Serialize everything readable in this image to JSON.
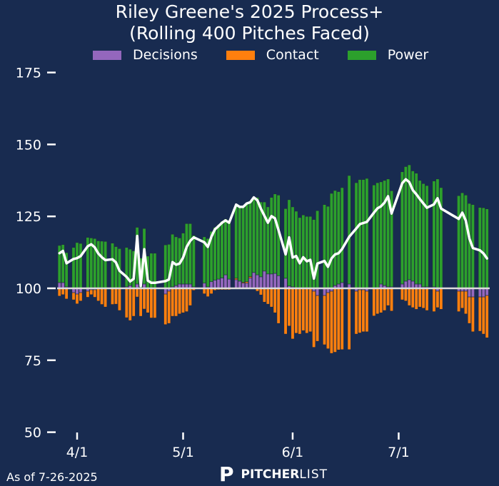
{
  "chart_data": {
    "type": "bar",
    "title": "Riley Greene's 2025 Process+",
    "subtitle": "(Rolling 400 Pitches Faced)",
    "xlabel": "",
    "ylabel": "",
    "ylim": [
      50,
      175
    ],
    "baseline": 100,
    "yticks": [
      "50",
      "75",
      "100",
      "125",
      "150",
      "175"
    ],
    "xticks": [
      "4/1",
      "5/1",
      "6/1",
      "7/1"
    ],
    "legend_position": "top-center",
    "legend": [
      "Decisions",
      "Contact",
      "Power"
    ],
    "colors": {
      "Decisions": "#9467bd",
      "Contact": "#ff7f0e",
      "Power": "#2ca02c",
      "line": "#ffffff",
      "baseline": "#dcdcdc",
      "background": "#182b50"
    },
    "line_series": "Process+ (100 + Decisions + Contact + Power)",
    "bars": [
      {
        "date": "3/27",
        "decisions": 2,
        "contact": -2.7,
        "power": 12.9
      },
      {
        "date": "3/28",
        "decisions": 2,
        "contact": -2.2,
        "power": 13.2
      },
      {
        "date": "3/29",
        "decisions": 0.5,
        "contact": -3.7,
        "power": 11.9
      },
      {
        "date": "3/31",
        "decisions": -1.5,
        "contact": -2.5,
        "power": 14.2
      },
      {
        "date": "4/1",
        "decisions": -2,
        "contact": -3.4,
        "power": 15.9
      },
      {
        "date": "4/2",
        "decisions": -1.5,
        "contact": -2.9,
        "power": 15.6
      },
      {
        "date": "4/4",
        "decisions": -1,
        "contact": -2.1,
        "power": 17.7
      },
      {
        "date": "4/5",
        "decisions": -0.5,
        "contact": -1.7,
        "power": 17.5
      },
      {
        "date": "4/6",
        "decisions": -0.5,
        "contact": -2.6,
        "power": 17.3
      },
      {
        "date": "4/7",
        "decisions": 0,
        "contact": -4.4,
        "power": 16.5
      },
      {
        "date": "4/8",
        "decisions": 0,
        "contact": -5.6,
        "power": 16.4
      },
      {
        "date": "4/9",
        "decisions": 0,
        "contact": -6.5,
        "power": 16.3
      },
      {
        "date": "4/11",
        "decisions": 0,
        "contact": -5.6,
        "power": 15.7
      },
      {
        "date": "4/12",
        "decisions": 0,
        "contact": -5.5,
        "power": 14.5
      },
      {
        "date": "4/13",
        "decisions": 0,
        "contact": -7.7,
        "power": 13.8
      },
      {
        "date": "4/15",
        "decisions": 0.5,
        "contact": -10.2,
        "power": 13.7
      },
      {
        "date": "4/16",
        "decisions": 1,
        "contact": -11.2,
        "power": 12.6
      },
      {
        "date": "4/17",
        "decisions": 0,
        "contact": -9.7,
        "power": 13
      },
      {
        "date": "4/18",
        "decisions": 1.5,
        "contact": -3,
        "power": 19.7
      },
      {
        "date": "4/19",
        "decisions": 0,
        "contact": -9.7,
        "power": 10.5
      },
      {
        "date": "4/20",
        "decisions": 1.5,
        "contact": -7.2,
        "power": 19.3
      },
      {
        "date": "4/21",
        "decisions": 0,
        "contact": -8.5,
        "power": 11.2
      },
      {
        "date": "4/22",
        "decisions": 0,
        "contact": -10.3,
        "power": 12.2
      },
      {
        "date": "4/23",
        "decisions": 0,
        "contact": -10.3,
        "power": 12.2
      },
      {
        "date": "4/26",
        "decisions": -2,
        "contact": -10.6,
        "power": 15.1
      },
      {
        "date": "4/27",
        "decisions": -1,
        "contact": -11.2,
        "power": 15.3
      },
      {
        "date": "4/28",
        "decisions": 0.5,
        "contact": -9.7,
        "power": 18.3
      },
      {
        "date": "4/29",
        "decisions": 1,
        "contact": -9.7,
        "power": 16.9
      },
      {
        "date": "4/30",
        "decisions": 1.5,
        "contact": -8.9,
        "power": 16
      },
      {
        "date": "5/1",
        "decisions": 1.5,
        "contact": -8.5,
        "power": 17.7
      },
      {
        "date": "5/2",
        "decisions": 1.5,
        "contact": -8.1,
        "power": 21
      },
      {
        "date": "5/3",
        "decisions": 1.5,
        "contact": -6,
        "power": 21
      },
      {
        "date": "5/4",
        "decisions": 0.5,
        "contact": -0.7,
        "power": 17.9
      },
      {
        "date": "5/7",
        "decisions": 1.8,
        "contact": -1.9,
        "power": 16.1
      },
      {
        "date": "5/8",
        "decisions": 0.5,
        "contact": -2.9,
        "power": 16.8
      },
      {
        "date": "5/9",
        "decisions": 2.3,
        "contact": -1.9,
        "power": 17.5
      },
      {
        "date": "5/10",
        "decisions": 2.8,
        "contact": -0.7,
        "power": 18.4
      },
      {
        "date": "5/11",
        "decisions": 3.2,
        "contact": -0.5,
        "power": 18.9
      },
      {
        "date": "5/12",
        "decisions": 3.6,
        "contact": -0.5,
        "power": 19.7
      },
      {
        "date": "5/13",
        "decisions": 4.7,
        "contact": -0.5,
        "power": 19.4
      },
      {
        "date": "5/14",
        "decisions": 3.2,
        "contact": -0.5,
        "power": 20.1
      },
      {
        "date": "5/16",
        "decisions": 3,
        "contact": 0.5,
        "power": 25.6
      },
      {
        "date": "5/17",
        "decisions": 2.5,
        "contact": 0,
        "power": 25.8
      },
      {
        "date": "5/18",
        "decisions": 1.8,
        "contact": 0.3,
        "power": 26.2
      },
      {
        "date": "5/19",
        "decisions": 1.8,
        "contact": 0.5,
        "power": 27.2
      },
      {
        "date": "5/20",
        "decisions": 3.6,
        "contact": 0.5,
        "power": 25.8
      },
      {
        "date": "5/21",
        "decisions": 5.5,
        "contact": 0,
        "power": 26.1
      },
      {
        "date": "5/22",
        "decisions": 4.7,
        "contact": -1,
        "power": 26.9
      },
      {
        "date": "5/23",
        "decisions": 4,
        "contact": -2.3,
        "power": 26
      },
      {
        "date": "5/24",
        "decisions": 6,
        "contact": -4.8,
        "power": 24
      },
      {
        "date": "5/25",
        "decisions": 5,
        "contact": -5.5,
        "power": 23.3
      },
      {
        "date": "5/26",
        "decisions": 5,
        "contact": -6.5,
        "power": 26.6
      },
      {
        "date": "5/27",
        "decisions": 5.2,
        "contact": -8.5,
        "power": 27.6
      },
      {
        "date": "5/28",
        "decisions": 4.4,
        "contact": -12.2,
        "power": 28
      },
      {
        "date": "5/30",
        "decisions": 3.5,
        "contact": -15.9,
        "power": 24.2
      },
      {
        "date": "5/31",
        "decisions": 0.8,
        "contact": -13.1,
        "power": 30
      },
      {
        "date": "6/1",
        "decisions": 0.5,
        "contact": -17.6,
        "power": 27.8
      },
      {
        "date": "6/2",
        "decisions": 0,
        "contact": -15.6,
        "power": 26.8
      },
      {
        "date": "6/3",
        "decisions": 0,
        "contact": -15.9,
        "power": 24.6
      },
      {
        "date": "6/4",
        "decisions": 0,
        "contact": -14.7,
        "power": 25.5
      },
      {
        "date": "6/5",
        "decisions": 0,
        "contact": -15.6,
        "power": 25
      },
      {
        "date": "6/6",
        "decisions": 0,
        "contact": -15.1,
        "power": 25
      },
      {
        "date": "6/7",
        "decisions": -1,
        "contact": -19.5,
        "power": 23.9
      },
      {
        "date": "6/8",
        "decisions": -2.5,
        "contact": -15.9,
        "power": 27
      },
      {
        "date": "6/10",
        "decisions": -2.5,
        "contact": -17.1,
        "power": 29.1
      },
      {
        "date": "6/11",
        "decisions": -1.5,
        "contact": -19.5,
        "power": 28.5
      },
      {
        "date": "6/12",
        "decisions": -1,
        "contact": -21.6,
        "power": 33
      },
      {
        "date": "6/13",
        "decisions": 1,
        "contact": -22.2,
        "power": 33
      },
      {
        "date": "6/14",
        "decisions": 1.5,
        "contact": -21.4,
        "power": 32.1
      },
      {
        "date": "6/15",
        "decisions": 2,
        "contact": -21.3,
        "power": 33
      },
      {
        "date": "6/17",
        "decisions": 1.5,
        "contact": -21.3,
        "power": 37.7
      },
      {
        "date": "6/19",
        "decisions": -1,
        "contact": -14.9,
        "power": 36.7
      },
      {
        "date": "6/20",
        "decisions": -0.5,
        "contact": -15,
        "power": 37.8
      },
      {
        "date": "6/21",
        "decisions": -0.5,
        "contact": -14.6,
        "power": 37.8
      },
      {
        "date": "6/22",
        "decisions": -1,
        "contact": -14.1,
        "power": 38.2
      },
      {
        "date": "6/24",
        "decisions": 0,
        "contact": -9.6,
        "power": 35.9
      },
      {
        "date": "6/25",
        "decisions": 0,
        "contact": -8.9,
        "power": 36.7
      },
      {
        "date": "6/26",
        "decisions": 1.5,
        "contact": -8.5,
        "power": 35.5
      },
      {
        "date": "6/27",
        "decisions": 1,
        "contact": -7.7,
        "power": 36.5
      },
      {
        "date": "6/28",
        "decisions": 0.5,
        "contact": -6,
        "power": 37.5
      },
      {
        "date": "6/29",
        "decisions": 0.5,
        "contact": -7.9,
        "power": 33.4
      },
      {
        "date": "7/2",
        "decisions": 1.5,
        "contact": -4,
        "power": 39
      },
      {
        "date": "7/3",
        "decisions": 2.5,
        "contact": -4.4,
        "power": 39.8
      },
      {
        "date": "7/4",
        "decisions": 3,
        "contact": -6,
        "power": 39.9
      },
      {
        "date": "7/5",
        "decisions": 2.5,
        "contact": -6.7,
        "power": 38.3
      },
      {
        "date": "7/6",
        "decisions": 1.5,
        "contact": -7.3,
        "power": 38.5
      },
      {
        "date": "7/7",
        "decisions": 1.5,
        "contact": -6.5,
        "power": 36
      },
      {
        "date": "7/8",
        "decisions": 0.5,
        "contact": -6.9,
        "power": 35.9
      },
      {
        "date": "7/9",
        "decisions": 0.5,
        "contact": -7.7,
        "power": 35.2
      },
      {
        "date": "7/11",
        "decisions": 0.5,
        "contact": -8.1,
        "power": 36.8
      },
      {
        "date": "7/12",
        "decisions": -1,
        "contact": -5.7,
        "power": 38
      },
      {
        "date": "7/13",
        "decisions": 0,
        "contact": -7.3,
        "power": 35
      },
      {
        "date": "7/18",
        "decisions": -1,
        "contact": -7.1,
        "power": 32.2
      },
      {
        "date": "7/19",
        "decisions": -1,
        "contact": -5.9,
        "power": 33.2
      },
      {
        "date": "7/20",
        "decisions": -1,
        "contact": -7.9,
        "power": 32.4
      },
      {
        "date": "7/21",
        "decisions": -3,
        "contact": -9.2,
        "power": 29.5
      },
      {
        "date": "7/22",
        "decisions": -3,
        "contact": -12.1,
        "power": 29.1
      },
      {
        "date": "7/24",
        "decisions": -3,
        "contact": -11.9,
        "power": 28.1
      },
      {
        "date": "7/25",
        "decisions": -3,
        "contact": -12.9,
        "power": 28
      },
      {
        "date": "7/26",
        "decisions": -2.5,
        "contact": -14.7,
        "power": 27.6
      }
    ]
  },
  "footer": {
    "as_of": "As of 7-26-2025",
    "logo_text": "PITCHERLIST",
    "logo_bold": "PITCHER",
    "logo_light": "LIST"
  }
}
